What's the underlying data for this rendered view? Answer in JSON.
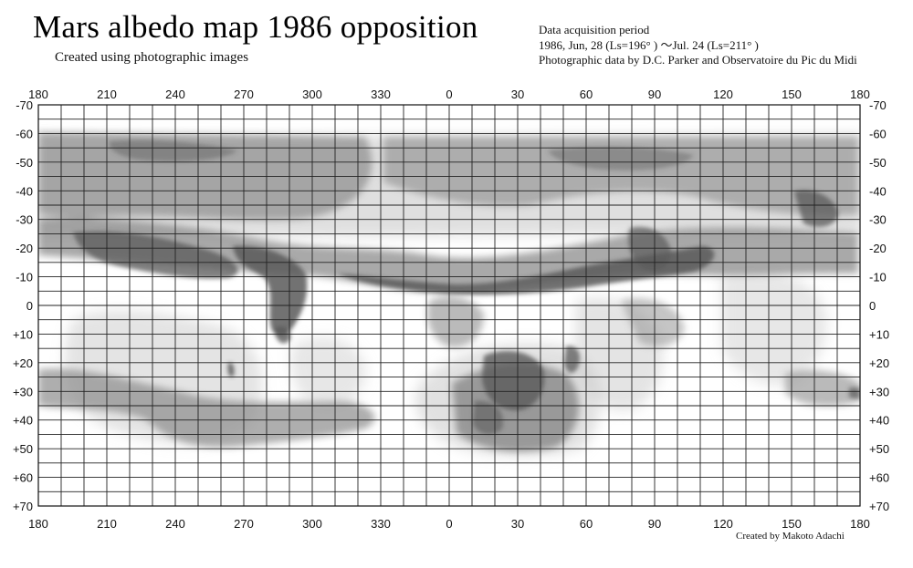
{
  "title": "Mars albedo map 1986  opposition",
  "subtitle": "Created using photographic images",
  "acquisition": {
    "heading": "Data acquisition period",
    "period": "1986, Jun, 28 (Ls=196°  ) ～Jul. 24 (Ls=211°  )",
    "source": "Photographic data by D.C. Parker and Observatoire du Pic du Midi"
  },
  "credit": "Created by Makoto Adachi",
  "longitudes": [
    "180",
    "210",
    "240",
    "270",
    "300",
    "330",
    "0",
    "30",
    "60",
    "90",
    "120",
    "150",
    "180"
  ],
  "latitudes": [
    "-70",
    "-60",
    "-50",
    "-40",
    "-30",
    "-20",
    "-10",
    "0",
    "+10",
    "+20",
    "+30",
    "+40",
    "+50",
    "+60",
    "+70"
  ],
  "grid": {
    "longitude_step_deg": 10,
    "latitude_step_deg": 5,
    "line_color": "#222222"
  },
  "shading": {
    "dark": "#5a5a5a",
    "mid": "#8c8c8c",
    "light": "#c4c4c4"
  }
}
